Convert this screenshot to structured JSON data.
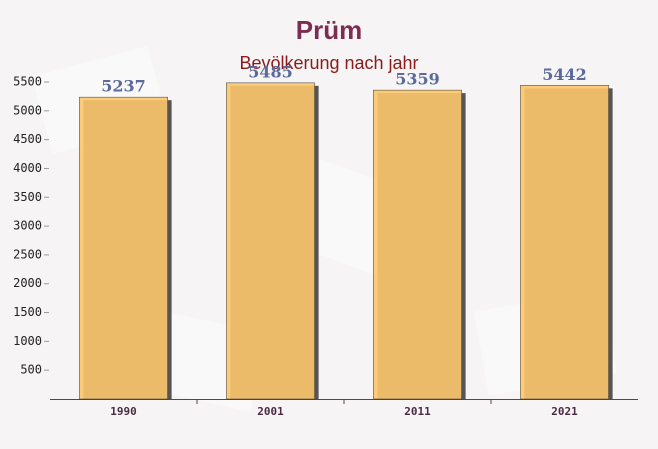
{
  "chart_data": {
    "type": "bar",
    "title": "Prüm",
    "subtitle": "Bevölkerung nach jahr",
    "categories": [
      "1990",
      "2001",
      "2011",
      "2021"
    ],
    "values": [
      5237,
      5485,
      5359,
      5442
    ],
    "color": "#fdc76c",
    "ylim": [
      0,
      5500
    ],
    "yticks": [
      500,
      1000,
      1500,
      2000,
      2500,
      3000,
      3500,
      4000,
      4500,
      5000,
      5500
    ]
  }
}
